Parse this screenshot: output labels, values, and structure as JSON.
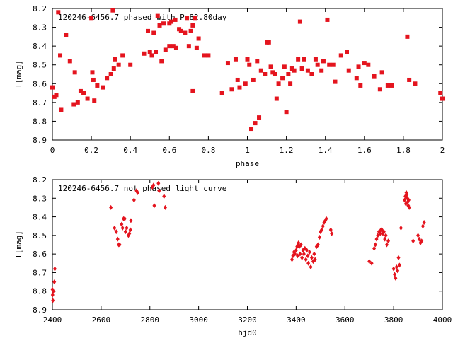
{
  "colors": {
    "points": "#e4141e",
    "axis": "#000000",
    "background": "#ffffff"
  },
  "chart_data": [
    {
      "type": "scatter",
      "title": "120246-6456.7 phased with P=82.80day",
      "xlabel": "phase",
      "ylabel": "I[mag]",
      "xlim": [
        0,
        2
      ],
      "ylim": [
        8.9,
        8.2
      ],
      "y_inverted": true,
      "grid": false,
      "legend": "none",
      "marker": "square",
      "xticks": [
        0,
        0.2,
        0.4,
        0.6,
        0.8,
        1,
        1.2,
        1.4,
        1.6,
        1.8,
        2
      ],
      "xtick_labels": [
        "0",
        "0.2",
        "0.4",
        "0.6",
        "0.8",
        "1",
        "1.2",
        "1.4",
        "1.6",
        "1.8",
        "2"
      ],
      "yticks": [
        8.2,
        8.3,
        8.4,
        8.5,
        8.6,
        8.7,
        8.8,
        8.9
      ],
      "ytick_labels": [
        "8.2",
        "8.3",
        "8.4",
        "8.5",
        "8.6",
        "8.7",
        "8.8",
        "8.9"
      ],
      "points": [
        [
          0.0,
          8.62
        ],
        [
          0.01,
          8.67
        ],
        [
          0.02,
          8.66
        ],
        [
          0.03,
          8.22
        ],
        [
          0.04,
          8.45
        ],
        [
          0.045,
          8.74
        ],
        [
          0.07,
          8.34
        ],
        [
          0.09,
          8.48
        ],
        [
          0.11,
          8.71
        ],
        [
          0.115,
          8.54
        ],
        [
          0.13,
          8.7
        ],
        [
          0.145,
          8.64
        ],
        [
          0.16,
          8.65
        ],
        [
          0.18,
          8.68
        ],
        [
          0.2,
          8.25
        ],
        [
          0.205,
          8.54
        ],
        [
          0.21,
          8.58
        ],
        [
          0.215,
          8.69
        ],
        [
          0.23,
          8.61
        ],
        [
          0.26,
          8.62
        ],
        [
          0.28,
          8.57
        ],
        [
          0.3,
          8.55
        ],
        [
          0.31,
          8.21
        ],
        [
          0.315,
          8.52
        ],
        [
          0.32,
          8.47
        ],
        [
          0.34,
          8.5
        ],
        [
          0.36,
          8.45
        ],
        [
          0.4,
          8.5
        ],
        [
          0.47,
          8.44
        ],
        [
          0.49,
          8.32
        ],
        [
          0.5,
          8.43
        ],
        [
          0.51,
          8.45
        ],
        [
          0.52,
          8.33
        ],
        [
          0.53,
          8.43
        ],
        [
          0.54,
          8.24
        ],
        [
          0.55,
          8.29
        ],
        [
          0.56,
          8.48
        ],
        [
          0.57,
          8.28
        ],
        [
          0.58,
          8.42
        ],
        [
          0.6,
          8.28
        ],
        [
          0.6,
          8.4
        ],
        [
          0.61,
          8.27
        ],
        [
          0.62,
          8.4
        ],
        [
          0.63,
          8.26
        ],
        [
          0.635,
          8.41
        ],
        [
          0.65,
          8.31
        ],
        [
          0.66,
          8.32
        ],
        [
          0.68,
          8.33
        ],
        [
          0.69,
          8.25
        ],
        [
          0.7,
          8.4
        ],
        [
          0.71,
          8.32
        ],
        [
          0.72,
          8.29
        ],
        [
          0.73,
          8.25
        ],
        [
          0.74,
          8.41
        ],
        [
          0.75,
          8.36
        ],
        [
          0.72,
          8.64
        ],
        [
          0.78,
          8.45
        ],
        [
          0.8,
          8.45
        ],
        [
          0.87,
          8.65
        ],
        [
          0.9,
          8.49
        ],
        [
          0.92,
          8.63
        ],
        [
          0.94,
          8.47
        ],
        [
          0.95,
          8.58
        ],
        [
          0.96,
          8.62
        ],
        [
          0.99,
          8.6
        ],
        [
          1.0,
          8.47
        ],
        [
          1.01,
          8.5
        ],
        [
          1.02,
          8.84
        ],
        [
          1.03,
          8.58
        ],
        [
          1.04,
          8.81
        ],
        [
          1.05,
          8.48
        ],
        [
          1.06,
          8.78
        ],
        [
          1.07,
          8.53
        ],
        [
          1.09,
          8.55
        ],
        [
          1.1,
          8.38
        ],
        [
          1.11,
          8.38
        ],
        [
          1.12,
          8.51
        ],
        [
          1.13,
          8.54
        ],
        [
          1.14,
          8.55
        ],
        [
          1.15,
          8.68
        ],
        [
          1.16,
          8.6
        ],
        [
          1.18,
          8.57
        ],
        [
          1.19,
          8.51
        ],
        [
          1.2,
          8.75
        ],
        [
          1.21,
          8.55
        ],
        [
          1.22,
          8.6
        ],
        [
          1.23,
          8.52
        ],
        [
          1.24,
          8.53
        ],
        [
          1.26,
          8.47
        ],
        [
          1.27,
          8.27
        ],
        [
          1.28,
          8.52
        ],
        [
          1.29,
          8.47
        ],
        [
          1.31,
          8.53
        ],
        [
          1.33,
          8.55
        ],
        [
          1.35,
          8.47
        ],
        [
          1.36,
          8.5
        ],
        [
          1.38,
          8.53
        ],
        [
          1.39,
          8.48
        ],
        [
          1.41,
          8.26
        ],
        [
          1.42,
          8.5
        ],
        [
          1.44,
          8.5
        ],
        [
          1.45,
          8.59
        ],
        [
          1.48,
          8.45
        ],
        [
          1.51,
          8.43
        ],
        [
          1.52,
          8.53
        ],
        [
          1.56,
          8.57
        ],
        [
          1.57,
          8.51
        ],
        [
          1.58,
          8.61
        ],
        [
          1.6,
          8.49
        ],
        [
          1.62,
          8.5
        ],
        [
          1.65,
          8.56
        ],
        [
          1.68,
          8.63
        ],
        [
          1.69,
          8.54
        ],
        [
          1.72,
          8.61
        ],
        [
          1.74,
          8.61
        ],
        [
          1.82,
          8.35
        ],
        [
          1.83,
          8.58
        ],
        [
          1.86,
          8.6
        ],
        [
          1.99,
          8.65
        ],
        [
          2.0,
          8.68
        ]
      ]
    },
    {
      "type": "scatter",
      "title": "120246-6456.7 not phased light curve",
      "xlabel": "hjd0",
      "ylabel": "I[mag]",
      "xlim": [
        2400,
        4000
      ],
      "ylim": [
        8.9,
        8.2
      ],
      "y_inverted": true,
      "grid": false,
      "legend": "none",
      "marker": "diamond",
      "xticks": [
        2400,
        2600,
        2800,
        3000,
        3200,
        3400,
        3600,
        3800,
        4000
      ],
      "xtick_labels": [
        "2400",
        "2600",
        "2800",
        "3000",
        "3200",
        "3400",
        "3600",
        "3800",
        "4000"
      ],
      "yticks": [
        8.2,
        8.3,
        8.4,
        8.5,
        8.6,
        8.7,
        8.8,
        8.9
      ],
      "ytick_labels": [
        "8.2",
        "8.3",
        "8.4",
        "8.5",
        "8.6",
        "8.7",
        "8.8",
        "8.9"
      ],
      "points": [
        [
          2400,
          8.79
        ],
        [
          2401,
          8.82
        ],
        [
          2402,
          8.85
        ],
        [
          2404,
          8.8
        ],
        [
          2408,
          8.75
        ],
        [
          2410,
          8.68
        ],
        [
          2640,
          8.35
        ],
        [
          2655,
          8.46
        ],
        [
          2662,
          8.48
        ],
        [
          2668,
          8.52
        ],
        [
          2672,
          8.55
        ],
        [
          2676,
          8.55
        ],
        [
          2684,
          8.44
        ],
        [
          2688,
          8.46
        ],
        [
          2692,
          8.41
        ],
        [
          2697,
          8.41
        ],
        [
          2700,
          8.48
        ],
        [
          2705,
          8.46
        ],
        [
          2712,
          8.5
        ],
        [
          2716,
          8.49
        ],
        [
          2720,
          8.47
        ],
        [
          2722,
          8.42
        ],
        [
          2735,
          8.31
        ],
        [
          2745,
          8.26
        ],
        [
          2750,
          8.27
        ],
        [
          2810,
          8.24
        ],
        [
          2815,
          8.23
        ],
        [
          2818,
          8.34
        ],
        [
          2835,
          8.22
        ],
        [
          2838,
          8.26
        ],
        [
          2858,
          8.29
        ],
        [
          2863,
          8.35
        ],
        [
          3383,
          8.63
        ],
        [
          3387,
          8.61
        ],
        [
          3391,
          8.59
        ],
        [
          3395,
          8.6
        ],
        [
          3400,
          8.58
        ],
        [
          3404,
          8.56
        ],
        [
          3406,
          8.61
        ],
        [
          3408,
          8.55
        ],
        [
          3410,
          8.54
        ],
        [
          3413,
          8.56
        ],
        [
          3416,
          8.6
        ],
        [
          3420,
          8.55
        ],
        [
          3424,
          8.62
        ],
        [
          3428,
          8.58
        ],
        [
          3432,
          8.6
        ],
        [
          3436,
          8.57
        ],
        [
          3440,
          8.63
        ],
        [
          3444,
          8.58
        ],
        [
          3448,
          8.61
        ],
        [
          3450,
          8.65
        ],
        [
          3455,
          8.59
        ],
        [
          3460,
          8.67
        ],
        [
          3464,
          8.62
        ],
        [
          3470,
          8.64
        ],
        [
          3474,
          8.6
        ],
        [
          3478,
          8.63
        ],
        [
          3484,
          8.56
        ],
        [
          3490,
          8.55
        ],
        [
          3496,
          8.51
        ],
        [
          3500,
          8.48
        ],
        [
          3505,
          8.47
        ],
        [
          3510,
          8.45
        ],
        [
          3515,
          8.43
        ],
        [
          3520,
          8.42
        ],
        [
          3524,
          8.41
        ],
        [
          3542,
          8.47
        ],
        [
          3546,
          8.49
        ],
        [
          3700,
          8.64
        ],
        [
          3710,
          8.65
        ],
        [
          3720,
          8.57
        ],
        [
          3725,
          8.55
        ],
        [
          3730,
          8.52
        ],
        [
          3735,
          8.5
        ],
        [
          3740,
          8.48
        ],
        [
          3745,
          8.49
        ],
        [
          3748,
          8.47
        ],
        [
          3752,
          8.47
        ],
        [
          3756,
          8.49
        ],
        [
          3760,
          8.48
        ],
        [
          3764,
          8.52
        ],
        [
          3768,
          8.5
        ],
        [
          3772,
          8.55
        ],
        [
          3778,
          8.53
        ],
        [
          3800,
          8.68
        ],
        [
          3804,
          8.71
        ],
        [
          3808,
          8.73
        ],
        [
          3812,
          8.67
        ],
        [
          3816,
          8.69
        ],
        [
          3820,
          8.62
        ],
        [
          3824,
          8.66
        ],
        [
          3830,
          8.46
        ],
        [
          3845,
          8.31
        ],
        [
          3848,
          8.29
        ],
        [
          3850,
          8.33
        ],
        [
          3852,
          8.27
        ],
        [
          3854,
          8.28
        ],
        [
          3856,
          8.3
        ],
        [
          3858,
          8.32
        ],
        [
          3860,
          8.34
        ],
        [
          3862,
          8.31
        ],
        [
          3864,
          8.35
        ],
        [
          3880,
          8.53
        ],
        [
          3900,
          8.5
        ],
        [
          3905,
          8.52
        ],
        [
          3910,
          8.54
        ],
        [
          3915,
          8.53
        ],
        [
          3920,
          8.45
        ],
        [
          3925,
          8.43
        ]
      ]
    }
  ]
}
